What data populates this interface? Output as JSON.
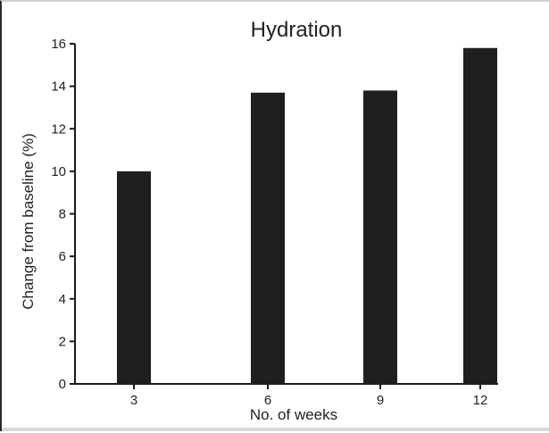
{
  "chart_data": {
    "type": "bar",
    "title": "Hydration",
    "xlabel": "No. of weeks",
    "ylabel": "Change from baseline (%)",
    "categories": [
      "3",
      "6",
      "9",
      "12"
    ],
    "values": [
      10.0,
      13.7,
      13.8,
      15.8
    ],
    "ylim": [
      0,
      16
    ],
    "yticks": [
      "0",
      "2",
      "4",
      "6",
      "8",
      "10",
      "12",
      "14",
      "16"
    ],
    "grid": false,
    "bar_color": "#1f1f1f"
  }
}
